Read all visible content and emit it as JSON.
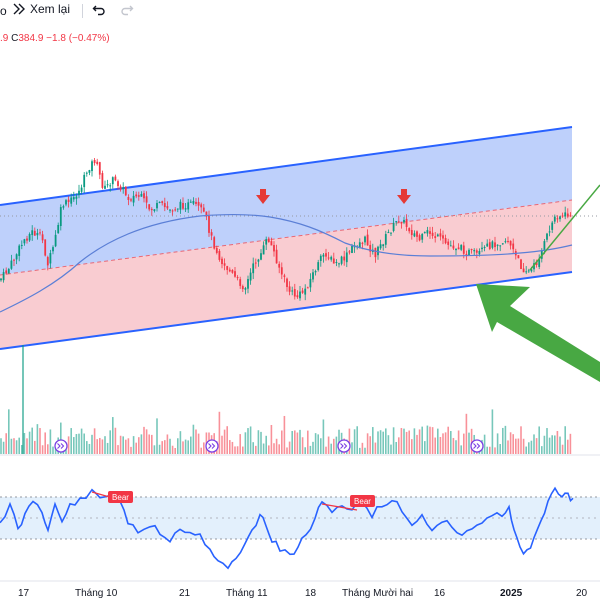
{
  "toolbar": {
    "fragment": "o",
    "replay_label": "Xem lại",
    "icons": [
      "replay-icon",
      "undo-icon",
      "redo-icon"
    ]
  },
  "legend": {
    "open_fragment": ".9",
    "close_label": "C",
    "close_value": "384.9",
    "change": "−1.8 (−0.47%)"
  },
  "x_axis_labels": [
    "17",
    "Tháng 10",
    "21",
    "Tháng 11",
    "18",
    "Tháng Mười hai",
    "16",
    "2025",
    "20"
  ],
  "rsi_badges": [
    "Bear",
    "Bear"
  ],
  "colors": {
    "up": "#089981",
    "down": "#f23645",
    "channel_line": "#2962ff",
    "upper_fill": "#bbcdfb",
    "lower_fill": "#f9c9cf",
    "ma": "#5b7fd6",
    "rsi": "#2962ff",
    "arrow": "#48a843",
    "marker": "#e53935"
  },
  "chart_data": [
    {
      "type": "candlestick",
      "title": "",
      "xlabel": "",
      "ylabel": "",
      "close_last": 384.9,
      "change": -1.8,
      "change_pct": -0.47,
      "indicators": [
        "moving-average",
        "regression-channel"
      ]
    },
    {
      "type": "bar",
      "title": "",
      "series": "volume"
    },
    {
      "type": "line",
      "title": "",
      "series": "RSI",
      "signals": [
        "Bear",
        "Bear"
      ]
    }
  ]
}
